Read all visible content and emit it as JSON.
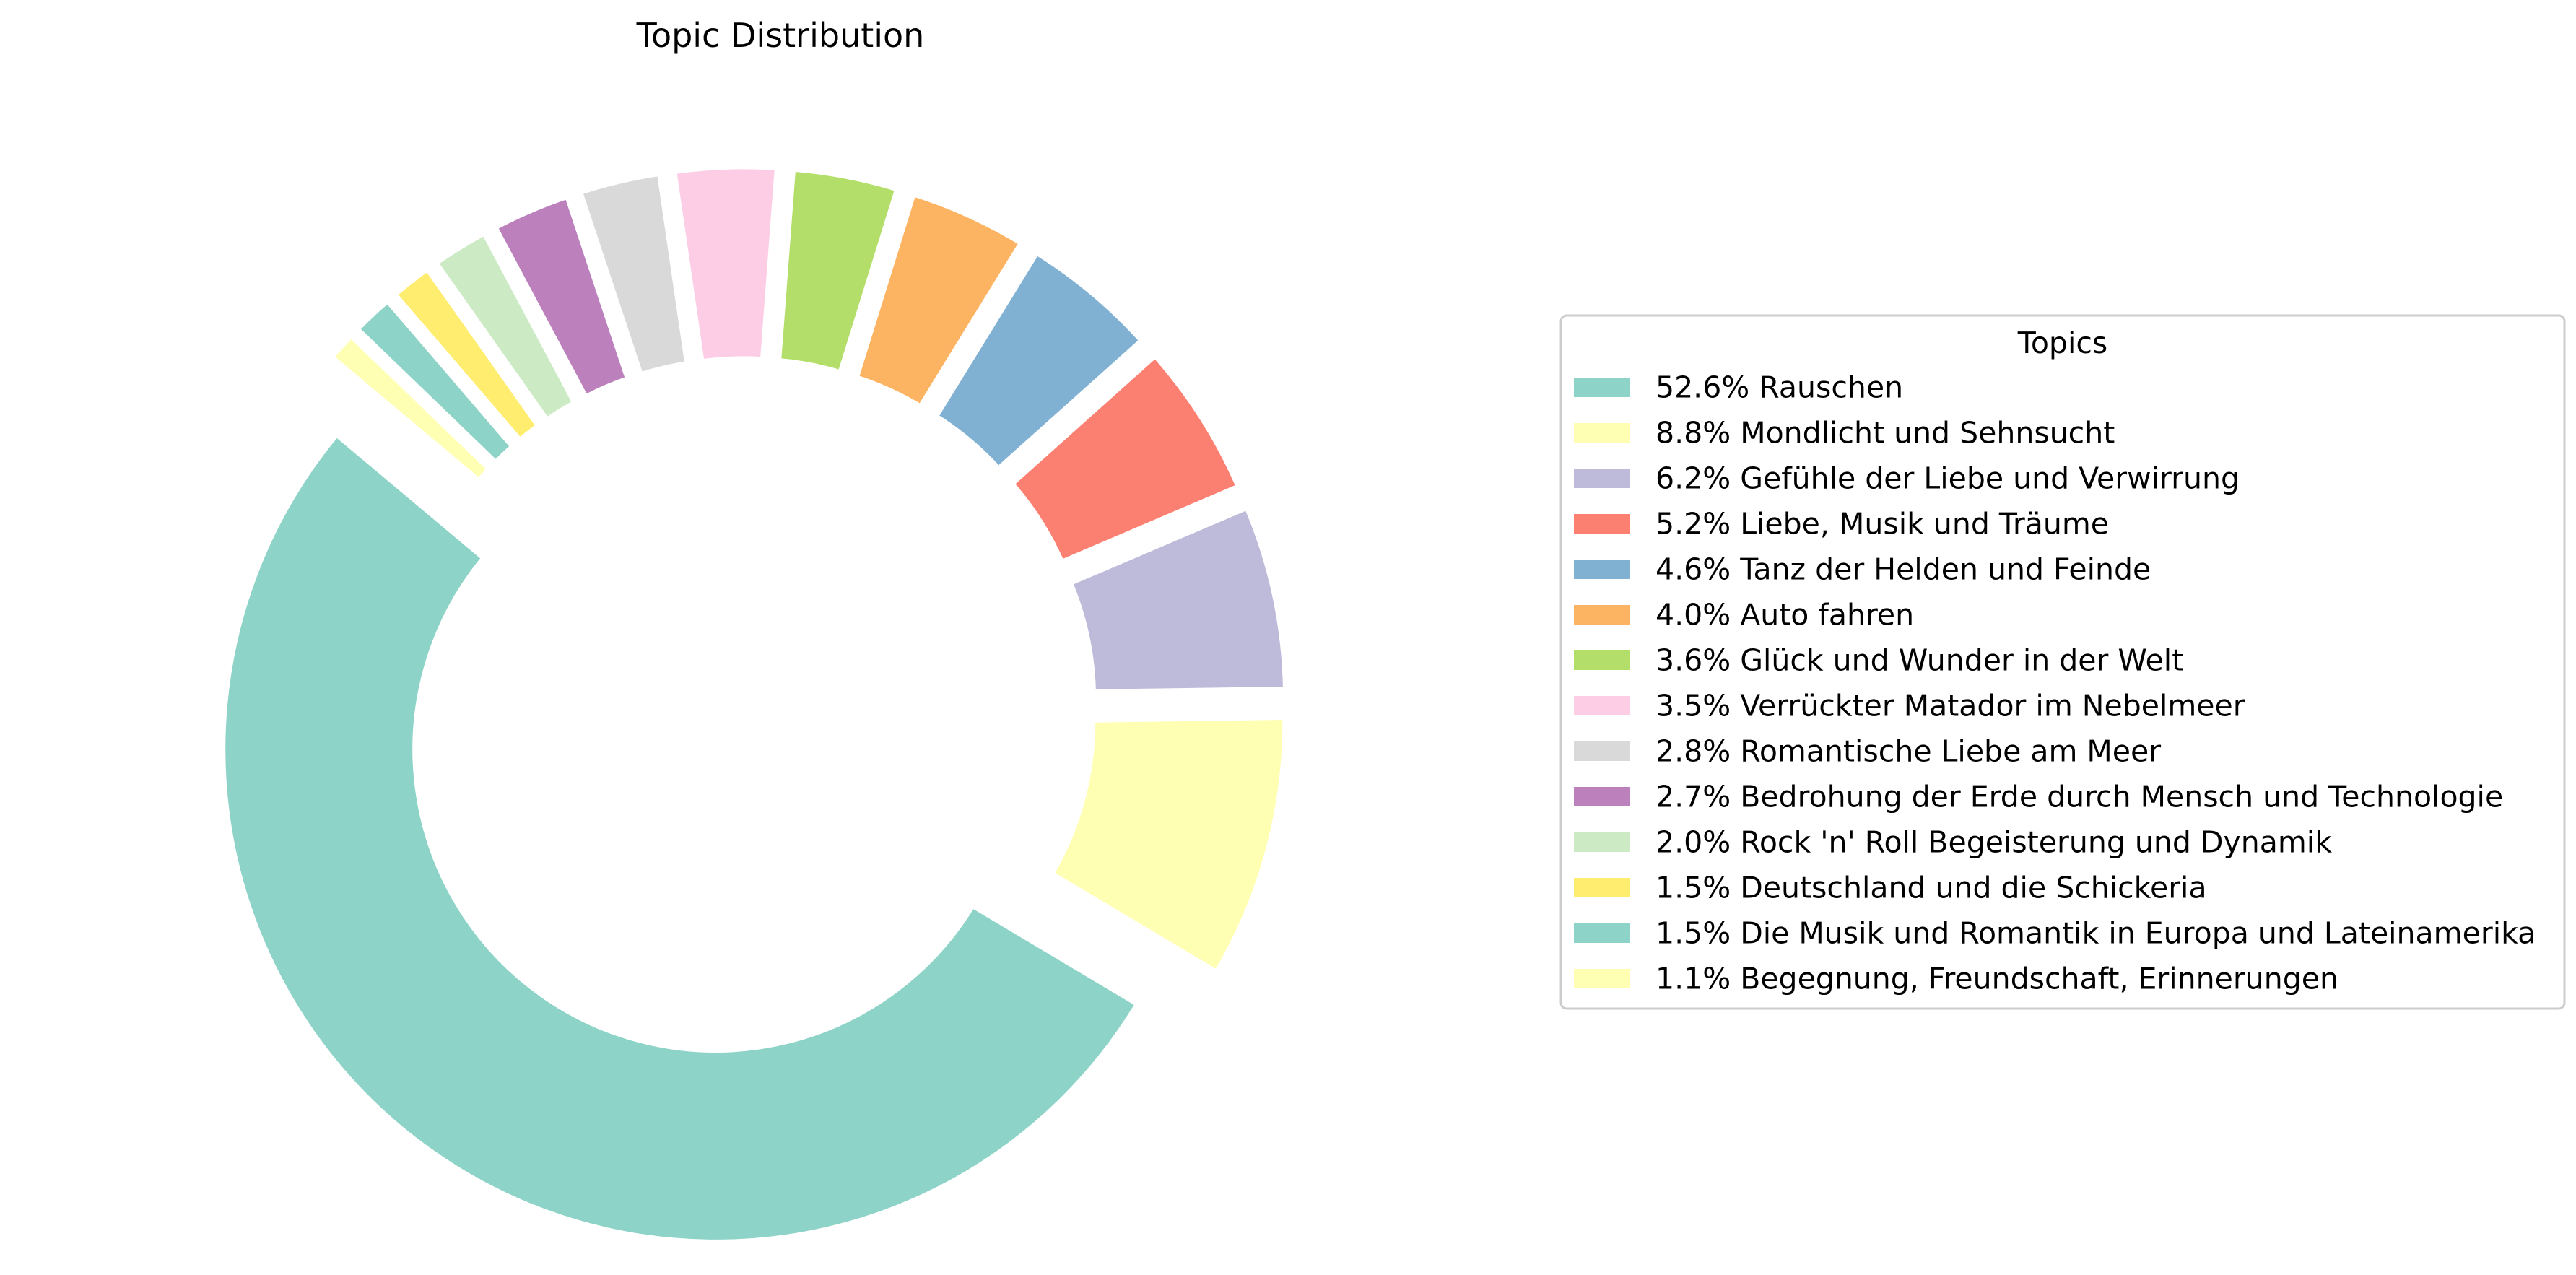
{
  "chart_data": {
    "type": "pie",
    "variant": "donut",
    "title": "Topic Distribution",
    "legend": {
      "title": "Topics",
      "placement": "right"
    },
    "start_angle_deg": 140,
    "direction": "counterclockwise",
    "slices": [
      {
        "label": "52.6% Rauschen",
        "value": 52.6,
        "color": "#8dd3c7",
        "exploded": true
      },
      {
        "label": "8.8% Mondlicht und Sehnsucht",
        "value": 8.8,
        "color": "#ffffb3",
        "exploded": true
      },
      {
        "label": "6.2% Gefühle der Liebe und Verwirrung",
        "value": 6.2,
        "color": "#bebada",
        "exploded": true
      },
      {
        "label": "5.2% Liebe, Musik und Träume",
        "value": 5.2,
        "color": "#fb8072",
        "exploded": true
      },
      {
        "label": "4.6% Tanz der Helden und Feinde",
        "value": 4.6,
        "color": "#80b1d3",
        "exploded": true
      },
      {
        "label": "4.0% Auto fahren",
        "value": 4.0,
        "color": "#fdb462",
        "exploded": true
      },
      {
        "label": "3.6% Glück und Wunder in der Welt",
        "value": 3.6,
        "color": "#b3de69",
        "exploded": true
      },
      {
        "label": "3.5% Verrückter Matador im Nebelmeer",
        "value": 3.5,
        "color": "#fccde5",
        "exploded": true
      },
      {
        "label": "2.8% Romantische Liebe am Meer",
        "value": 2.8,
        "color": "#d9d9d9",
        "exploded": true
      },
      {
        "label": "2.7% Bedrohung der Erde durch Mensch und Technologie",
        "value": 2.7,
        "color": "#bc80bd",
        "exploded": true
      },
      {
        "label": "2.0% Rock 'n' Roll Begeisterung und Dynamik",
        "value": 2.0,
        "color": "#ccebc5",
        "exploded": true
      },
      {
        "label": "1.5% Deutschland und die Schickeria",
        "value": 1.5,
        "color": "#ffed6f",
        "exploded": true
      },
      {
        "label": "1.5% Die Musik und Romantik in Europa und Lateinamerika",
        "value": 1.5,
        "color": "#8dd3c7",
        "exploded": true
      },
      {
        "label": "1.1% Begegnung, Freundschaft, Erinnerungen",
        "value": 1.1,
        "color": "#ffffb3",
        "exploded": true
      }
    ]
  }
}
